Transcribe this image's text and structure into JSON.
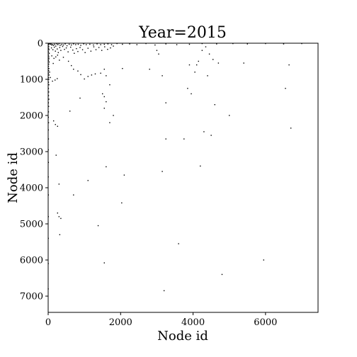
{
  "chart_data": {
    "type": "scatter",
    "title": "Year=2015",
    "xlabel": "Node id",
    "ylabel": "Node id",
    "xlim": [
      0,
      7450
    ],
    "ylim": [
      7450,
      0
    ],
    "y_inverted": true,
    "grid": false,
    "x_ticks": [
      0,
      2000,
      4000,
      6000
    ],
    "y_ticks": [
      0,
      1000,
      2000,
      3000,
      4000,
      5000,
      6000,
      7000
    ],
    "point_color": "#000000",
    "points": [
      [
        5,
        5
      ],
      [
        20,
        15
      ],
      [
        40,
        10
      ],
      [
        60,
        30
      ],
      [
        80,
        20
      ],
      [
        100,
        50
      ],
      [
        120,
        40
      ],
      [
        150,
        60
      ],
      [
        180,
        30
      ],
      [
        210,
        80
      ],
      [
        240,
        20
      ],
      [
        270,
        40
      ],
      [
        300,
        10
      ],
      [
        330,
        60
      ],
      [
        370,
        40
      ],
      [
        420,
        50
      ],
      [
        470,
        20
      ],
      [
        520,
        70
      ],
      [
        580,
        30
      ],
      [
        640,
        50
      ],
      [
        700,
        20
      ],
      [
        760,
        40
      ],
      [
        830,
        30
      ],
      [
        900,
        60
      ],
      [
        980,
        20
      ],
      [
        1050,
        40
      ],
      [
        1150,
        30
      ],
      [
        1250,
        50
      ],
      [
        1350,
        20
      ],
      [
        1450,
        40
      ],
      [
        1550,
        30
      ],
      [
        1650,
        20
      ],
      [
        1750,
        40
      ],
      [
        1900,
        10
      ],
      [
        2050,
        30
      ],
      [
        2250,
        20
      ],
      [
        2450,
        40
      ],
      [
        2700,
        10
      ],
      [
        2950,
        50
      ],
      [
        3250,
        20
      ],
      [
        3550,
        40
      ],
      [
        3900,
        30
      ],
      [
        4250,
        10
      ],
      [
        4650,
        20
      ],
      [
        5100,
        10
      ],
      [
        5500,
        20
      ],
      [
        6000,
        10
      ],
      [
        6500,
        20
      ],
      [
        7000,
        10
      ],
      [
        10,
        40
      ],
      [
        15,
        90
      ],
      [
        12,
        140
      ],
      [
        25,
        180
      ],
      [
        8,
        240
      ],
      [
        30,
        280
      ],
      [
        10,
        330
      ],
      [
        18,
        380
      ],
      [
        22,
        430
      ],
      [
        8,
        480
      ],
      [
        28,
        520
      ],
      [
        15,
        580
      ],
      [
        9,
        640
      ],
      [
        20,
        700
      ],
      [
        14,
        760
      ],
      [
        6,
        830
      ],
      [
        24,
        880
      ],
      [
        11,
        950
      ],
      [
        17,
        1000
      ],
      [
        9,
        1080
      ],
      [
        19,
        1150
      ],
      [
        8,
        1250
      ],
      [
        15,
        1350
      ],
      [
        10,
        1450
      ],
      [
        20,
        1550
      ],
      [
        7,
        1650
      ],
      [
        13,
        1750
      ],
      [
        9,
        1900
      ],
      [
        6,
        2050
      ],
      [
        11,
        2200
      ],
      [
        5,
        2400
      ],
      [
        8,
        2650
      ],
      [
        4,
        2950
      ],
      [
        7,
        3300
      ],
      [
        3,
        3700
      ],
      [
        6,
        4200
      ],
      [
        5,
        4800
      ],
      [
        4,
        5400
      ],
      [
        3,
        6100
      ],
      [
        2,
        6800
      ],
      [
        90,
        130
      ],
      [
        130,
        180
      ],
      [
        170,
        110
      ],
      [
        200,
        220
      ],
      [
        250,
        160
      ],
      [
        280,
        260
      ],
      [
        320,
        120
      ],
      [
        350,
        200
      ],
      [
        400,
        90
      ],
      [
        450,
        170
      ],
      [
        500,
        130
      ],
      [
        550,
        240
      ],
      [
        620,
        110
      ],
      [
        680,
        190
      ],
      [
        720,
        280
      ],
      [
        780,
        150
      ],
      [
        820,
        230
      ],
      [
        880,
        120
      ],
      [
        950,
        180
      ],
      [
        1020,
        260
      ],
      [
        1100,
        140
      ],
      [
        1180,
        220
      ],
      [
        1260,
        100
      ],
      [
        1320,
        180
      ],
      [
        1400,
        120
      ],
      [
        1480,
        200
      ],
      [
        1560,
        100
      ],
      [
        1640,
        170
      ],
      [
        1720,
        130
      ],
      [
        1800,
        80
      ],
      [
        100,
        350
      ],
      [
        160,
        420
      ],
      [
        210,
        380
      ],
      [
        260,
        330
      ],
      [
        310,
        470
      ],
      [
        140,
        560
      ],
      [
        420,
        390
      ],
      [
        560,
        500
      ],
      [
        640,
        620
      ],
      [
        700,
        720
      ],
      [
        820,
        770
      ],
      [
        900,
        870
      ],
      [
        1000,
        990
      ],
      [
        1100,
        920
      ],
      [
        1200,
        880
      ],
      [
        1300,
        850
      ],
      [
        1450,
        830
      ],
      [
        1550,
        720
      ],
      [
        1600,
        900
      ],
      [
        1700,
        1150
      ],
      [
        1500,
        1400
      ],
      [
        1550,
        1480
      ],
      [
        1600,
        1620
      ],
      [
        880,
        1520
      ],
      [
        1800,
        2000
      ],
      [
        1700,
        2200
      ],
      [
        1550,
        1800
      ],
      [
        40,
        800
      ],
      [
        60,
        950
      ],
      [
        120,
        1050
      ],
      [
        190,
        1020
      ],
      [
        250,
        980
      ],
      [
        150,
        2150
      ],
      [
        200,
        2250
      ],
      [
        260,
        2300
      ],
      [
        220,
        3100
      ],
      [
        300,
        3900
      ],
      [
        260,
        4700
      ],
      [
        300,
        4800
      ],
      [
        350,
        4850
      ],
      [
        320,
        5300
      ],
      [
        600,
        1880
      ],
      [
        700,
        4200
      ],
      [
        1100,
        3800
      ],
      [
        1380,
        5050
      ],
      [
        1600,
        3420
      ],
      [
        2100,
        3650
      ],
      [
        2030,
        4420
      ],
      [
        1550,
        6080
      ],
      [
        2050,
        700
      ],
      [
        2800,
        720
      ],
      [
        3000,
        200
      ],
      [
        3050,
        300
      ],
      [
        3150,
        900
      ],
      [
        3250,
        1650
      ],
      [
        3250,
        2650
      ],
      [
        3150,
        3550
      ],
      [
        3750,
        2650
      ],
      [
        3600,
        5550
      ],
      [
        3850,
        1250
      ],
      [
        3950,
        1400
      ],
      [
        4050,
        800
      ],
      [
        4150,
        500
      ],
      [
        4250,
        200
      ],
      [
        4350,
        100
      ],
      [
        4450,
        300
      ],
      [
        4550,
        450
      ],
      [
        4400,
        900
      ],
      [
        4600,
        1700
      ],
      [
        4700,
        550
      ],
      [
        4300,
        2450
      ],
      [
        4200,
        3400
      ],
      [
        4500,
        2550
      ],
      [
        5000,
        2000
      ],
      [
        4800,
        6400
      ],
      [
        5950,
        6000
      ],
      [
        6550,
        1250
      ],
      [
        6650,
        600
      ],
      [
        6700,
        2350
      ],
      [
        5400,
        550
      ],
      [
        3200,
        6850
      ],
      [
        4100,
        600
      ],
      [
        3900,
        600
      ]
    ]
  }
}
